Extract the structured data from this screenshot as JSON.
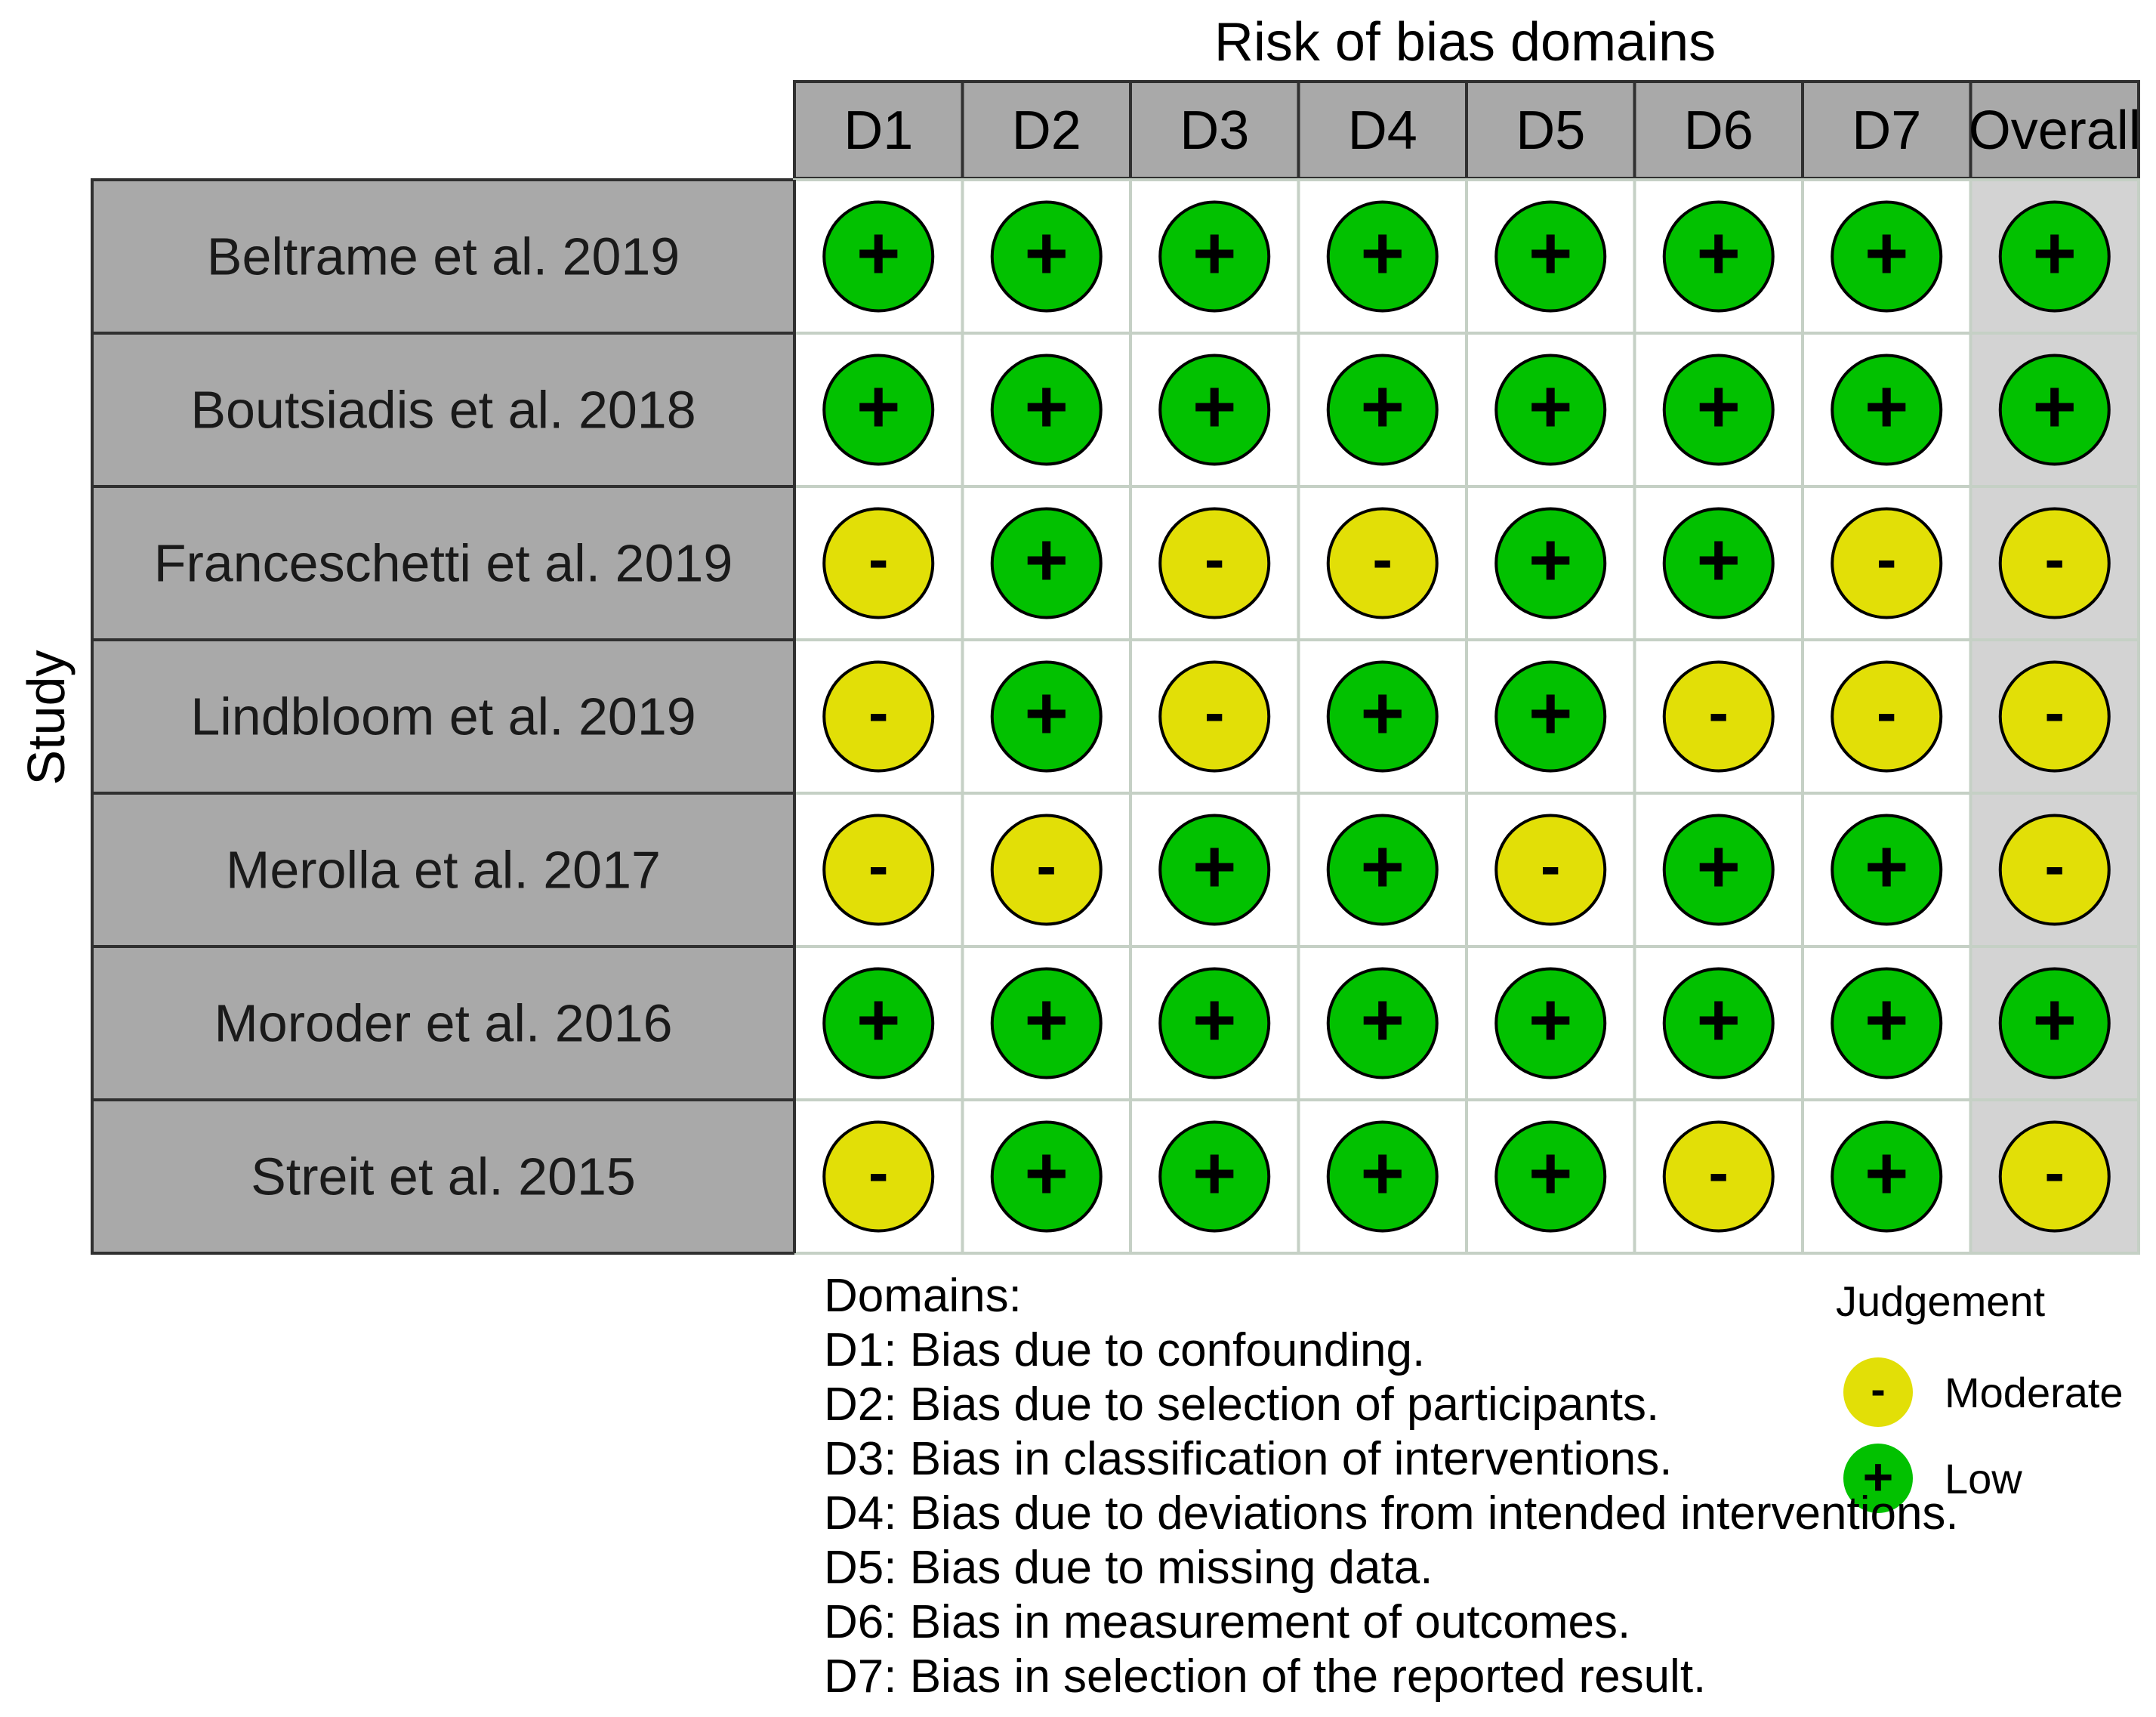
{
  "chart_data": {
    "type": "table",
    "title": "Risk of bias domains",
    "ylabel": "Study",
    "columns": [
      "D1",
      "D2",
      "D3",
      "D4",
      "D5",
      "D6",
      "D7",
      "Overall"
    ],
    "studies": [
      "Beltrame et al. 2019",
      "Boutsiadis et al. 2018",
      "Franceschetti et al. 2019",
      "Lindbloom et al. 2019",
      "Merolla et al. 2017",
      "Moroder et al. 2016",
      "Streit et al. 2015"
    ],
    "judgements": [
      [
        "Low",
        "Low",
        "Low",
        "Low",
        "Low",
        "Low",
        "Low",
        "Low"
      ],
      [
        "Low",
        "Low",
        "Low",
        "Low",
        "Low",
        "Low",
        "Low",
        "Low"
      ],
      [
        "Moderate",
        "Low",
        "Moderate",
        "Moderate",
        "Low",
        "Low",
        "Moderate",
        "Moderate"
      ],
      [
        "Moderate",
        "Low",
        "Moderate",
        "Low",
        "Low",
        "Moderate",
        "Moderate",
        "Moderate"
      ],
      [
        "Moderate",
        "Moderate",
        "Low",
        "Low",
        "Moderate",
        "Low",
        "Low",
        "Moderate"
      ],
      [
        "Low",
        "Low",
        "Low",
        "Low",
        "Low",
        "Low",
        "Low",
        "Low"
      ],
      [
        "Moderate",
        "Low",
        "Low",
        "Low",
        "Low",
        "Moderate",
        "Low",
        "Moderate"
      ]
    ],
    "legend": {
      "title": "Judgement",
      "items": [
        {
          "label": "Moderate",
          "symbol": "-",
          "color": "#E2DF07"
        },
        {
          "label": "Low",
          "symbol": "+",
          "color": "#02C100"
        }
      ]
    }
  },
  "domains": {
    "heading": "Domains:",
    "items": [
      "D1: Bias due to confounding.",
      "D2: Bias due to selection of participants.",
      "D3: Bias in classification of interventions.",
      "D4: Bias due to deviations from intended interventions.",
      "D5: Bias due to missing data.",
      "D6: Bias in measurement of outcomes.",
      "D7: Bias in selection of the reported result."
    ]
  },
  "colors": {
    "header_fill": "#A9A9A9",
    "overall_fill": "#D3D3D3",
    "grid_line": "#C5D0C5",
    "border": "#303030"
  }
}
